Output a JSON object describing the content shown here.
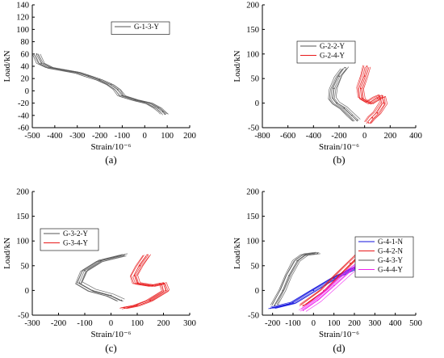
{
  "chart_data": [
    {
      "type": "line",
      "panel_label": "(a)",
      "xlabel": "Strain/10⁻⁶",
      "ylabel": "Load/kN",
      "xlim": [
        -500,
        200
      ],
      "ylim": [
        -60,
        140
      ],
      "xticks": [
        "-500",
        "-400",
        "-300",
        "-200",
        "-100",
        "0",
        "100",
        "200"
      ],
      "yticks": [
        "-60",
        "-40",
        "-20",
        "0",
        "20",
        "40",
        "60",
        "80",
        "100",
        "120",
        "140"
      ],
      "legend_position": "top-right",
      "series": [
        {
          "name": "G-1-3-Y",
          "color": "#555555",
          "points": [
            [
              -480,
              60
            ],
            [
              -460,
              45
            ],
            [
              -420,
              38
            ],
            [
              -360,
              34
            ],
            [
              -300,
              30
            ],
            [
              -250,
              24
            ],
            [
              -200,
              18
            ],
            [
              -150,
              10
            ],
            [
              -120,
              2
            ],
            [
              -100,
              -8
            ],
            [
              -40,
              -15
            ],
            [
              20,
              -20
            ],
            [
              60,
              -28
            ],
            [
              80,
              -34
            ],
            [
              90,
              -38
            ]
          ]
        }
      ]
    },
    {
      "type": "line",
      "panel_label": "(b)",
      "xlabel": "Strain/10⁻⁶",
      "ylabel": "Load/kN",
      "xlim": [
        -800,
        400
      ],
      "ylim": [
        -50,
        200
      ],
      "xticks": [
        "-800",
        "-600",
        "-400",
        "-200",
        "0",
        "200",
        "400"
      ],
      "yticks": [
        "-50",
        "0",
        "50",
        "100",
        "150",
        "200"
      ],
      "legend_position": "center",
      "series": [
        {
          "name": "G-2-2-Y",
          "color": "#555555",
          "points": [
            [
              -150,
              72
            ],
            [
              -200,
              55
            ],
            [
              -240,
              30
            ],
            [
              -250,
              10
            ],
            [
              -220,
              0
            ],
            [
              -160,
              -10
            ],
            [
              -100,
              -25
            ],
            [
              -60,
              -35
            ]
          ]
        },
        {
          "name": "G-2-4-Y",
          "color": "#e8191a",
          "points": [
            [
              20,
              75
            ],
            [
              0,
              55
            ],
            [
              -30,
              30
            ],
            [
              -20,
              10
            ],
            [
              40,
              0
            ],
            [
              100,
              10
            ],
            [
              140,
              15
            ],
            [
              150,
              0
            ],
            [
              100,
              -20
            ],
            [
              60,
              -30
            ],
            [
              30,
              -40
            ]
          ]
        }
      ]
    },
    {
      "type": "line",
      "panel_label": "(c)",
      "xlabel": "Strain/10⁻⁶",
      "ylabel": "Load/kN",
      "xlim": [
        -300,
        300
      ],
      "ylim": [
        -50,
        200
      ],
      "xticks": [
        "-300",
        "-200",
        "-100",
        "0",
        "100",
        "200",
        "300"
      ],
      "yticks": [
        "-50",
        "0",
        "50",
        "100",
        "150",
        "200"
      ],
      "legend_position": "center-left",
      "series": [
        {
          "name": "G-3-2-Y",
          "color": "#555555",
          "points": [
            [
              50,
              72
            ],
            [
              -40,
              60
            ],
            [
              -100,
              40
            ],
            [
              -120,
              15
            ],
            [
              -70,
              0
            ],
            [
              0,
              -10
            ],
            [
              40,
              -20
            ]
          ]
        },
        {
          "name": "G-3-4-Y",
          "color": "#e8191a",
          "points": [
            [
              140,
              72
            ],
            [
              110,
              50
            ],
            [
              90,
              30
            ],
            [
              100,
              15
            ],
            [
              160,
              10
            ],
            [
              200,
              15
            ],
            [
              210,
              0
            ],
            [
              150,
              -20
            ],
            [
              100,
              -30
            ],
            [
              50,
              -35
            ]
          ]
        }
      ]
    },
    {
      "type": "line",
      "panel_label": "(d)",
      "xlabel": "Strain/10⁻⁶",
      "ylabel": "Load/kN",
      "xlim": [
        -250,
        500
      ],
      "ylim": [
        -50,
        200
      ],
      "xticks": [
        "-200",
        "-100",
        "0",
        "100",
        "200",
        "300",
        "400",
        "500"
      ],
      "yticks": [
        "-50",
        "0",
        "50",
        "100",
        "150",
        "200"
      ],
      "legend_position": "bottom-right",
      "series": [
        {
          "name": "G-4-1-N",
          "color": "#1111dd",
          "points": [
            [
              -200,
              -35
            ],
            [
              -100,
              -25
            ],
            [
              0,
              0
            ],
            [
              100,
              25
            ],
            [
              200,
              45
            ],
            [
              280,
              60
            ],
            [
              330,
              75
            ]
          ]
        },
        {
          "name": "G-4-2-N",
          "color": "#e8191a",
          "points": [
            [
              -50,
              -30
            ],
            [
              50,
              0
            ],
            [
              120,
              30
            ],
            [
              180,
              55
            ],
            [
              230,
              75
            ]
          ]
        },
        {
          "name": "G-4-3-Y",
          "color": "#555555",
          "points": [
            [
              -190,
              -30
            ],
            [
              -150,
              0
            ],
            [
              -120,
              30
            ],
            [
              -80,
              60
            ],
            [
              -40,
              72
            ],
            [
              20,
              75
            ]
          ]
        },
        {
          "name": "G-4-4-Y",
          "color": "#ee22ee",
          "points": [
            [
              -50,
              -40
            ],
            [
              20,
              -20
            ],
            [
              100,
              10
            ],
            [
              180,
              40
            ],
            [
              250,
              60
            ],
            [
              300,
              72
            ]
          ]
        }
      ]
    }
  ]
}
